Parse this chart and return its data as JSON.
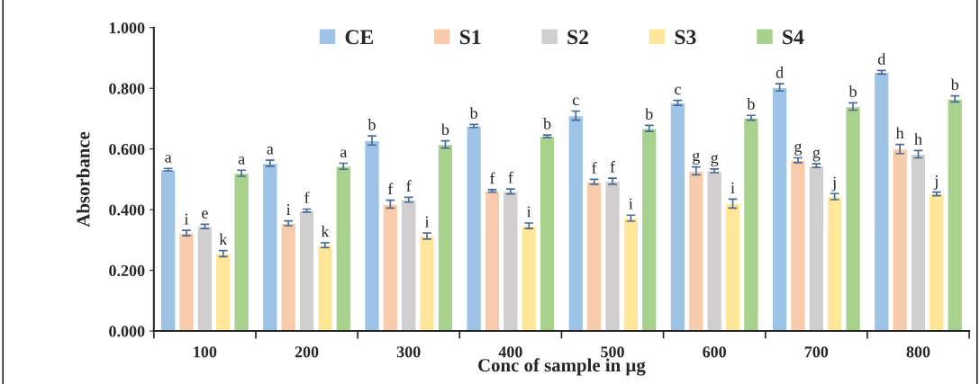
{
  "chart_data": {
    "type": "bar",
    "xlabel": "Conc of sample in µg",
    "ylabel": "Absorbance",
    "categories": [
      "100",
      "200",
      "300",
      "400",
      "500",
      "600",
      "700",
      "800"
    ],
    "ylim": [
      0,
      1
    ],
    "yticks": [
      {
        "value": 0,
        "label": "0.000"
      },
      {
        "value": 0.2,
        "label": "0.200"
      },
      {
        "value": 0.4,
        "label": "0.400"
      },
      {
        "value": 0.6,
        "label": "0.600"
      },
      {
        "value": 0.8,
        "label": "0.800"
      },
      {
        "value": 1,
        "label": "1.000"
      }
    ],
    "legend": "top",
    "grid": false,
    "series": [
      {
        "name": "CE",
        "color": "#9dc3e6",
        "values": [
          0.532,
          0.553,
          0.628,
          0.676,
          0.71,
          0.752,
          0.803,
          0.853
        ],
        "errors": [
          0.004,
          0.01,
          0.015,
          0.005,
          0.015,
          0.008,
          0.012,
          0.006
        ],
        "value_labels": [
          "a",
          "a",
          "b",
          "b",
          "c",
          "c",
          "d",
          "d"
        ]
      },
      {
        "name": "S1",
        "color": "#f8cbad",
        "values": [
          0.323,
          0.355,
          0.418,
          0.462,
          0.492,
          0.528,
          0.563,
          0.6
        ],
        "errors": [
          0.009,
          0.008,
          0.013,
          0.004,
          0.008,
          0.013,
          0.008,
          0.015
        ],
        "value_labels": [
          "i",
          "i",
          "f",
          "f",
          "f",
          "g",
          "g",
          "h"
        ]
      },
      {
        "name": "S2",
        "color": "#d0cece",
        "values": [
          0.345,
          0.397,
          0.433,
          0.46,
          0.494,
          0.528,
          0.545,
          0.583
        ],
        "errors": [
          0.007,
          0.005,
          0.008,
          0.008,
          0.01,
          0.006,
          0.006,
          0.012
        ],
        "value_labels": [
          "e",
          "f",
          "f",
          "f",
          "f",
          "g",
          "g",
          "h"
        ]
      },
      {
        "name": "S3",
        "color": "#ffe699",
        "values": [
          0.255,
          0.283,
          0.313,
          0.347,
          0.372,
          0.42,
          0.443,
          0.452
        ],
        "errors": [
          0.01,
          0.008,
          0.01,
          0.009,
          0.01,
          0.015,
          0.01,
          0.006
        ],
        "value_labels": [
          "k",
          "k",
          "i",
          "i",
          "i",
          "i",
          "j",
          "j"
        ]
      },
      {
        "name": "S4",
        "color": "#a9d18e",
        "values": [
          0.52,
          0.543,
          0.615,
          0.642,
          0.668,
          0.703,
          0.74,
          0.765
        ],
        "errors": [
          0.01,
          0.01,
          0.012,
          0.004,
          0.01,
          0.008,
          0.012,
          0.01
        ],
        "value_labels": [
          "a",
          "a",
          "b",
          "b",
          "b",
          "b",
          "b",
          "b"
        ]
      }
    ]
  }
}
